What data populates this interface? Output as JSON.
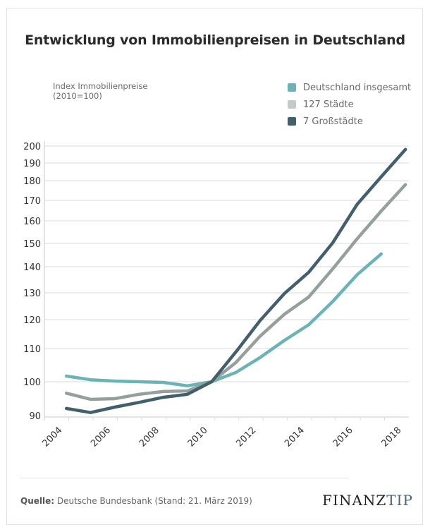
{
  "chart_data": {
    "type": "line",
    "title": "Entwicklung von Immobilienpreisen in Deutschland",
    "ylabel": "Index Immobilienpreise",
    "ylabel_sub": "(2010=100)",
    "xlabel": "",
    "yticks": [
      90,
      100,
      110,
      120,
      130,
      140,
      150,
      160,
      170,
      180,
      190,
      200
    ],
    "ytick_labels": [
      "90",
      "100",
      "110",
      "120",
      "130",
      "140",
      "150",
      "160",
      "170",
      "180",
      "190",
      "200"
    ],
    "xticks": [
      2004,
      2006,
      2008,
      2010,
      2012,
      2014,
      2016,
      2018
    ],
    "xtick_labels": [
      "2004",
      "2006",
      "2008",
      "2010",
      "2012",
      "2014",
      "2016",
      "2018"
    ],
    "xlim": [
      2004,
      2018
    ],
    "ylim": [
      90,
      200
    ],
    "grid": true,
    "legend_position": "top-right",
    "x": [
      2004,
      2005,
      2006,
      2007,
      2008,
      2009,
      2010,
      2011,
      2012,
      2013,
      2014,
      2015,
      2016,
      2017,
      2018
    ],
    "series": [
      {
        "name": "Deutschland insgesamt",
        "color": "#6cb3b8",
        "values": [
          101.7,
          100.6,
          100.2,
          100.0,
          99.8,
          98.8,
          100.0,
          102.8,
          107.3,
          112.8,
          118.2,
          126.8,
          136.9,
          145.5,
          null
        ]
      },
      {
        "name": "127 Städte",
        "color": "#959f9c",
        "values": [
          96.6,
          94.8,
          95.0,
          96.3,
          97.1,
          97.3,
          100.0,
          105.8,
          114.3,
          122.0,
          128.4,
          139.2,
          152.0,
          164.8,
          178.0
        ]
      },
      {
        "name": "7 Großstädte",
        "color": "#435f6b",
        "values": [
          92.1,
          90.9,
          92.5,
          93.9,
          95.4,
          96.3,
          100.0,
          109.0,
          119.7,
          129.7,
          137.8,
          150.3,
          168.0,
          182.2,
          198.0
        ]
      }
    ]
  },
  "footer": {
    "source_label": "Quelle:",
    "source_text": " Deutsche Bundesbank (Stand: 21. März 2019)",
    "brand_main": "FINANZ",
    "brand_accent": "TIP"
  }
}
